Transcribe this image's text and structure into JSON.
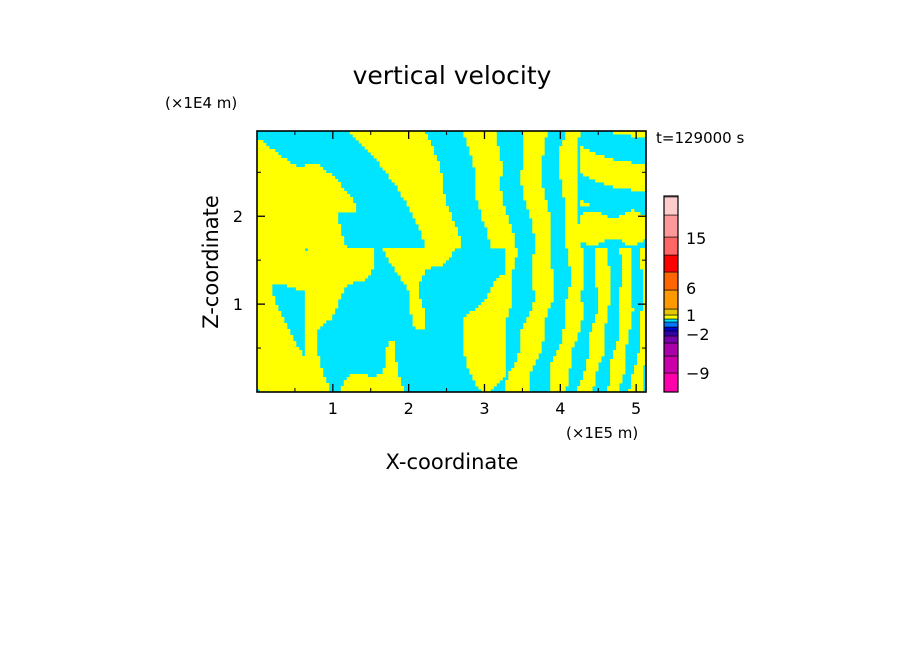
{
  "chart_data": {
    "type": "heatmap",
    "title": "vertical velocity",
    "xlabel": "X-coordinate",
    "ylabel": "Z-coordinate",
    "x_unit": "(×1E5 m)",
    "y_unit": "(×1E4 m)",
    "time_label": "t=129000 s",
    "xlim": [
      0,
      5.13
    ],
    "ylim": [
      0,
      2.97
    ],
    "x_ticks": [
      "1",
      "2",
      "3",
      "4",
      "5"
    ],
    "x_tick_values": [
      1,
      2,
      3,
      4,
      5
    ],
    "y_ticks": [
      "1",
      "2"
    ],
    "y_tick_values": [
      1,
      2
    ],
    "field_colors": {
      "positive": "#ffff00",
      "negative": "#00e5ff"
    },
    "colorbar": {
      "colors": [
        "#ff00aa",
        "#cc00aa",
        "#aa00aa",
        "#7700aa",
        "#3300aa",
        "#0000cc",
        "#0077ff",
        "#00e5ff",
        "#ffff00",
        "#e6c800",
        "#ff9900",
        "#ff6600",
        "#ff0000",
        "#ff6666",
        "#ff9999",
        "#ffcccc",
        "#ffeeee"
      ],
      "tick_labels": [
        "15",
        "6",
        "1",
        "−2",
        "−9"
      ],
      "tick_values": [
        15,
        6,
        1,
        -2,
        -9
      ]
    }
  }
}
